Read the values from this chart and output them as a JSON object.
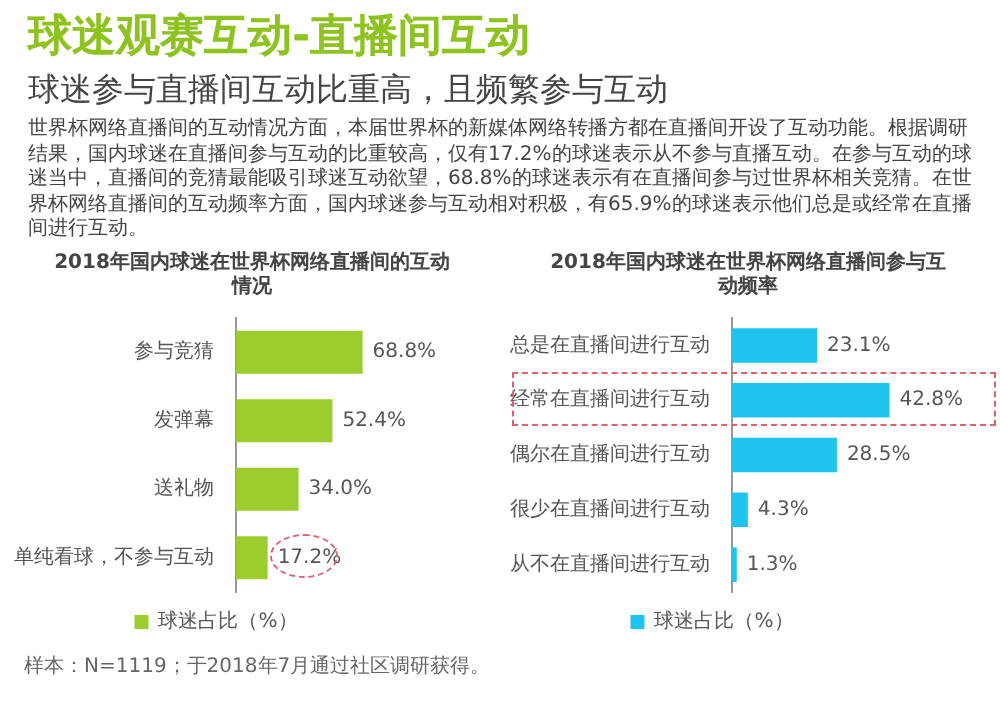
{
  "chart_data": [
    {
      "type": "other",
      "title": "球迷观赛互动-直播间互动",
      "subtitle": "球迷参与直播间互动比重高，且频繁参与互动",
      "annotations": [
        "世界杯网络直播间的互动情况方面，本届世界杯的新媒体网络转播方都在直播间开设了互动功能。根据调研结果，国内球迷在直播间参与互动的比重较高，仅有17.2%的球迷表示从不参与直播互动。在参与互动的球迷当中，直播间的竞猜最能吸引球迷互动欲望，68.8%的球迷表示有在直播间参与过世界杯相关竞猜。在世界杯网络直播间的互动频率方面，国内球迷参与互动相对积极，有65.9%的球迷表示他们总是或经常在直播间进行互动。"
      ]
    },
    {
      "type": "bar",
      "orientation": "horizontal",
      "title": "2018年国内球迷在世界杯网络直播间的互动情况",
      "categories": [
        "参与竞猜",
        "发弹幕",
        "送礼物",
        "单纯看球，不参与互动"
      ],
      "series": [
        {
          "name": "球迷占比（%）",
          "color": "#9ccc2e",
          "values": [
            68.8,
            52.4,
            34.0,
            17.2
          ],
          "value_labels": [
            "68.8%",
            "52.4%",
            "34.0%",
            "17.2%"
          ]
        }
      ],
      "tick_labels": "y",
      "legend": "bottom",
      "annotations": [
        "样本：N=1119；于2018年7月通过社区调研获得。"
      ]
    },
    {
      "type": "bar",
      "orientation": "horizontal",
      "title": "2018年国内球迷在世界杯网络直播间参与互动频率",
      "categories": [
        "总是在直播间进行互动",
        "经常在直播间进行互动",
        "偶尔在直播间进行互动",
        "很少在直播间进行互动",
        "从不在直播间进行互动"
      ],
      "series": [
        {
          "name": "球迷占比（%）",
          "color": "#1ec3ee",
          "values": [
            23.1,
            42.8,
            28.5,
            4.3,
            1.3
          ],
          "value_labels": [
            "23.1%",
            "42.8%",
            "28.5%",
            "4.3%",
            "1.3%"
          ]
        }
      ],
      "tick_labels": "y",
      "legend": "bottom"
    }
  ]
}
